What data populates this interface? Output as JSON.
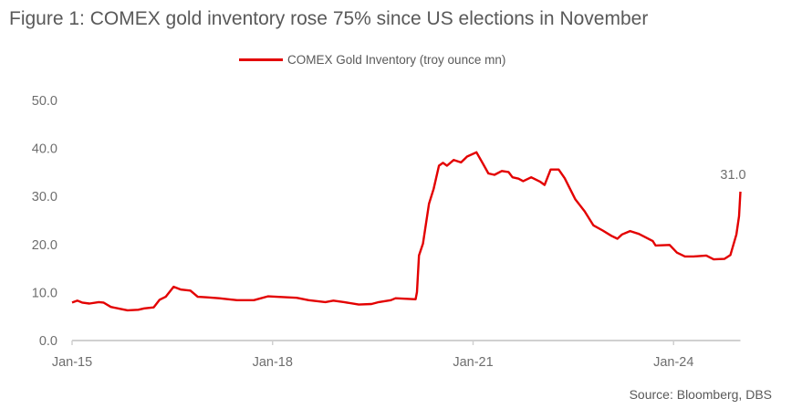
{
  "chart_data": {
    "type": "line",
    "title": "Figure 1: COMEX gold inventory rose 75% since US elections in November",
    "xlabel": "",
    "ylabel": "",
    "ylim": [
      0,
      50
    ],
    "xlim": [
      2015.0,
      2025.0
    ],
    "yticks": [
      "0.0",
      "10.0",
      "20.0",
      "30.0",
      "40.0",
      "50.0"
    ],
    "ytick_values": [
      0,
      10,
      20,
      30,
      40,
      50
    ],
    "xticks": [
      "Jan-15",
      "Jan-18",
      "Jan-21",
      "Jan-24"
    ],
    "xtick_values": [
      2015,
      2018,
      2021,
      2024
    ],
    "grid": false,
    "legend_position": "top-center",
    "series": [
      {
        "name": "COMEX Gold Inventory (troy ounce mn)",
        "color": "#e30000",
        "x": [
          2015.0,
          2015.08,
          2015.15,
          2015.26,
          2015.4,
          2015.47,
          2015.58,
          2015.72,
          2015.83,
          2015.99,
          2016.08,
          2016.22,
          2016.31,
          2016.4,
          2016.52,
          2016.63,
          2016.77,
          2016.88,
          2017.02,
          2017.2,
          2017.47,
          2017.72,
          2017.93,
          2018.06,
          2018.36,
          2018.54,
          2018.79,
          2018.91,
          2019.07,
          2019.29,
          2019.48,
          2019.59,
          2019.77,
          2019.84,
          2020.14,
          2020.16,
          2020.19,
          2020.25,
          2020.34,
          2020.41,
          2020.49,
          2020.55,
          2020.61,
          2020.71,
          2020.82,
          2020.91,
          2021.05,
          2021.14,
          2021.23,
          2021.32,
          2021.43,
          2021.53,
          2021.59,
          2021.68,
          2021.75,
          2021.87,
          2022.0,
          2022.07,
          2022.16,
          2022.28,
          2022.37,
          2022.53,
          2022.67,
          2022.8,
          2022.94,
          2023.07,
          2023.16,
          2023.23,
          2023.35,
          2023.48,
          2023.58,
          2023.69,
          2023.73,
          2023.94,
          2024.05,
          2024.17,
          2024.3,
          2024.49,
          2024.6,
          2024.76,
          2024.85,
          2024.94,
          2024.98,
          2025.0
        ],
        "values": [
          7.9,
          8.3,
          7.9,
          7.7,
          8.0,
          7.9,
          7.0,
          6.6,
          6.3,
          6.4,
          6.7,
          6.9,
          8.5,
          9.1,
          11.2,
          10.6,
          10.4,
          9.1,
          9.0,
          8.8,
          8.4,
          8.4,
          9.2,
          9.1,
          8.9,
          8.4,
          8.0,
          8.3,
          8.0,
          7.5,
          7.6,
          8.0,
          8.4,
          8.8,
          8.6,
          10.1,
          17.7,
          20.2,
          28.5,
          31.6,
          36.4,
          37.0,
          36.4,
          37.6,
          37.1,
          38.3,
          39.2,
          37.0,
          34.8,
          34.5,
          35.3,
          35.1,
          34.0,
          33.7,
          33.2,
          34.0,
          33.1,
          32.4,
          35.6,
          35.6,
          33.8,
          29.4,
          26.9,
          24.0,
          22.9,
          21.8,
          21.2,
          22.1,
          22.8,
          22.2,
          21.5,
          20.7,
          19.8,
          19.9,
          18.3,
          17.5,
          17.5,
          17.7,
          16.9,
          17.0,
          17.8,
          22.1,
          25.9,
          31.0
        ]
      }
    ],
    "annotations": [
      {
        "text": "31.0",
        "x": 2025.0,
        "y": 31.0
      }
    ],
    "source": "Source: Bloomberg, DBS"
  }
}
